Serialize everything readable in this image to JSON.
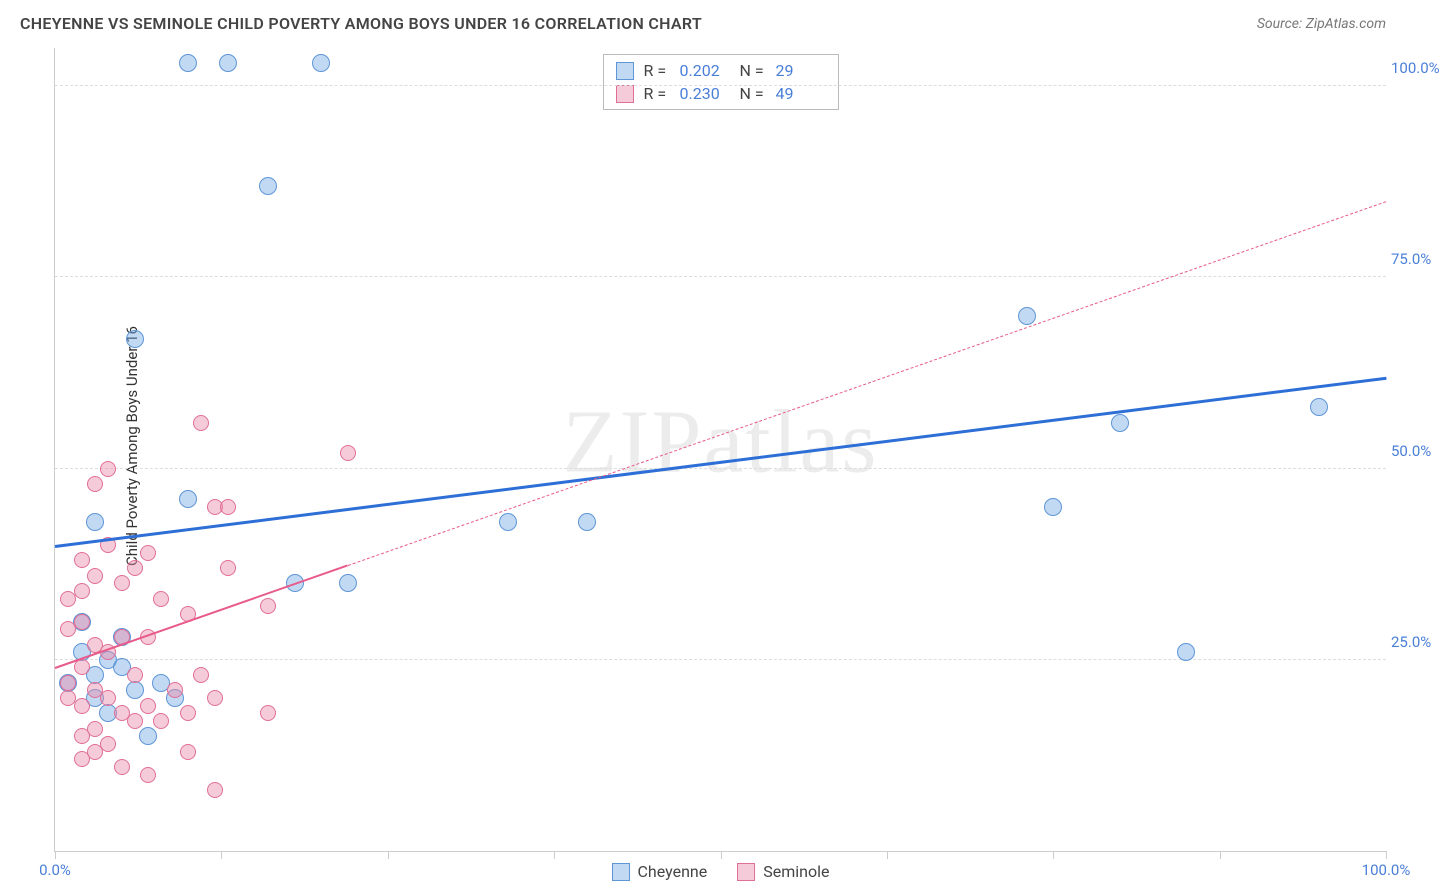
{
  "header": {
    "title": "CHEYENNE VS SEMINOLE CHILD POVERTY AMONG BOYS UNDER 16 CORRELATION CHART",
    "source": "Source: ZipAtlas.com"
  },
  "chart": {
    "type": "scatter",
    "ylabel": "Child Poverty Among Boys Under 16",
    "watermark": "ZIPatlas",
    "xlim": [
      0,
      100
    ],
    "ylim": [
      0,
      105
    ],
    "xtick_positions": [
      0,
      12.5,
      25,
      37.5,
      50,
      62.5,
      75,
      87.5,
      100
    ],
    "xtick_labels": {
      "0": "0.0%",
      "100": "100.0%"
    },
    "ytick_positions": [
      25,
      50,
      75,
      100
    ],
    "ytick_labels": {
      "25": "25.0%",
      "50": "50.0%",
      "75": "75.0%",
      "100": "100.0%"
    },
    "grid_color": "#dddddd",
    "background_color": "#ffffff",
    "series": [
      {
        "name": "Cheyenne",
        "marker_color_fill": "rgba(120,170,230,0.45)",
        "marker_color_stroke": "#5e96d6",
        "marker_radius": 9,
        "trend_color": "#2d6fd6",
        "trend_width": 3,
        "trend": {
          "x1": 0,
          "y1": 40,
          "x2": 100,
          "y2": 62,
          "solid_frac": 1.0
        },
        "R": "0.202",
        "N": "29",
        "points": [
          [
            10,
            103
          ],
          [
            13,
            103
          ],
          [
            20,
            103
          ],
          [
            16,
            87
          ],
          [
            6,
            67
          ],
          [
            73,
            70
          ],
          [
            95,
            58
          ],
          [
            80,
            56
          ],
          [
            10,
            46
          ],
          [
            75,
            45
          ],
          [
            3,
            43
          ],
          [
            34,
            43
          ],
          [
            22,
            35
          ],
          [
            40,
            43
          ],
          [
            85,
            26
          ],
          [
            2,
            30
          ],
          [
            4,
            25
          ],
          [
            8,
            22
          ],
          [
            3,
            23
          ],
          [
            18,
            35
          ],
          [
            4,
            18
          ],
          [
            3,
            20
          ],
          [
            7,
            15
          ],
          [
            5,
            24
          ],
          [
            6,
            21
          ],
          [
            2,
            26
          ],
          [
            1,
            22
          ],
          [
            9,
            20
          ],
          [
            5,
            28
          ]
        ]
      },
      {
        "name": "Seminole",
        "marker_color_fill": "rgba(235,140,170,0.45)",
        "marker_color_stroke": "#e06f97",
        "marker_radius": 8,
        "trend_color": "#e85a8a",
        "trend_width": 2.5,
        "trend": {
          "x1": 0,
          "y1": 24,
          "x2": 100,
          "y2": 85,
          "solid_frac": 0.22
        },
        "R": "0.230",
        "N": "49",
        "points": [
          [
            11,
            56
          ],
          [
            4,
            50
          ],
          [
            3,
            48
          ],
          [
            22,
            52
          ],
          [
            12,
            45
          ],
          [
            13,
            45
          ],
          [
            4,
            40
          ],
          [
            2,
            38
          ],
          [
            7,
            39
          ],
          [
            6,
            37
          ],
          [
            13,
            37
          ],
          [
            16,
            32
          ],
          [
            2,
            34
          ],
          [
            3,
            36
          ],
          [
            1,
            33
          ],
          [
            5,
            35
          ],
          [
            8,
            33
          ],
          [
            10,
            31
          ],
          [
            2,
            30
          ],
          [
            5,
            28
          ],
          [
            1,
            29
          ],
          [
            3,
            27
          ],
          [
            7,
            28
          ],
          [
            4,
            26
          ],
          [
            2,
            24
          ],
          [
            6,
            23
          ],
          [
            1,
            22
          ],
          [
            11,
            23
          ],
          [
            3,
            21
          ],
          [
            4,
            20
          ],
          [
            2,
            19
          ],
          [
            9,
            21
          ],
          [
            5,
            18
          ],
          [
            7,
            19
          ],
          [
            1,
            20
          ],
          [
            12,
            20
          ],
          [
            3,
            16
          ],
          [
            6,
            17
          ],
          [
            2,
            15
          ],
          [
            8,
            17
          ],
          [
            16,
            18
          ],
          [
            4,
            14
          ],
          [
            10,
            13
          ],
          [
            7,
            10
          ],
          [
            12,
            8
          ],
          [
            2,
            12
          ],
          [
            5,
            11
          ],
          [
            10,
            18
          ],
          [
            3,
            13
          ]
        ]
      }
    ]
  },
  "legend_top": {
    "r_label": "R =",
    "n_label": "N ="
  },
  "legend_bottom": [
    {
      "swatch_fill": "rgba(120,170,230,0.45)",
      "swatch_stroke": "#5e96d6",
      "label": "Cheyenne"
    },
    {
      "swatch_fill": "rgba(235,140,170,0.45)",
      "swatch_stroke": "#e06f97",
      "label": "Seminole"
    }
  ]
}
